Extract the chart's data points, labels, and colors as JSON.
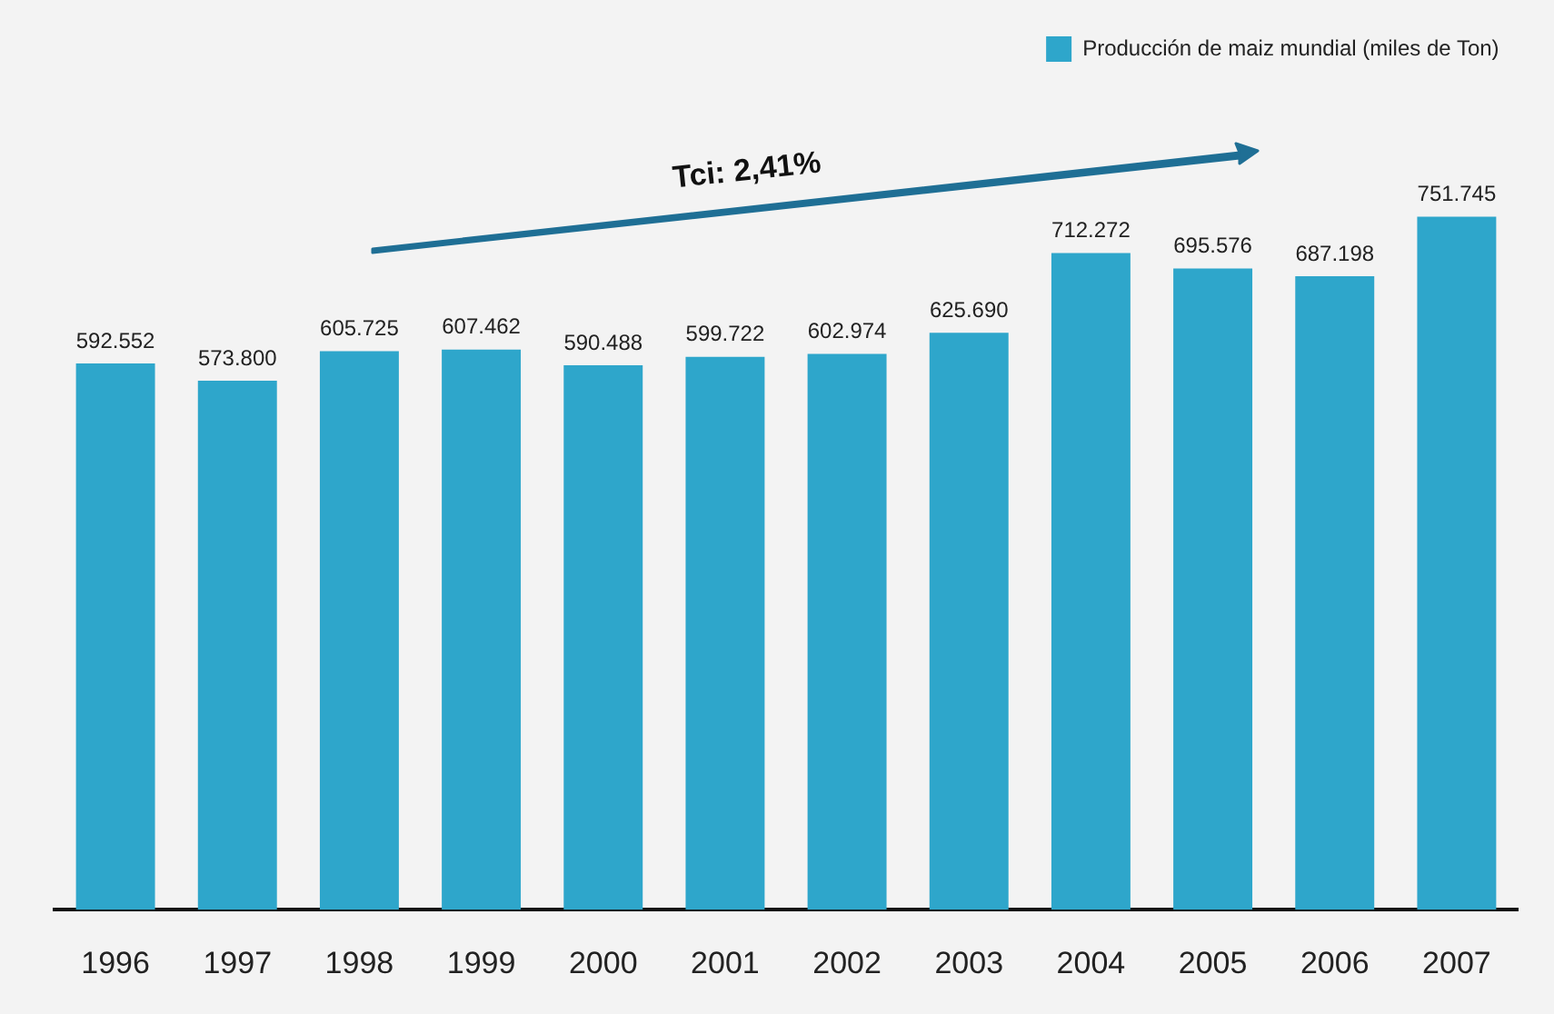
{
  "chart_data": {
    "type": "bar",
    "categories": [
      "1996",
      "1997",
      "1998",
      "1999",
      "2000",
      "2001",
      "2002",
      "2003",
      "2004",
      "2005",
      "2006",
      "2007"
    ],
    "series": [
      {
        "name": "Producción de maiz mundial (miles de Ton)",
        "color": "#2ea6cb",
        "values": [
          592552,
          573800,
          605725,
          607462,
          590488,
          599722,
          602974,
          625690,
          712272,
          695576,
          687198,
          751745
        ],
        "value_labels": [
          "592.552",
          "573.800",
          "605.725",
          "607.462",
          "590.488",
          "599.722",
          "602.974",
          "625.690",
          "712.272",
          "695.576",
          "687.198",
          "751.745"
        ]
      }
    ],
    "annotations": [
      "Tci: 2,41%"
    ],
    "legend": "top right",
    "grid": false,
    "tick_labels": "x"
  }
}
